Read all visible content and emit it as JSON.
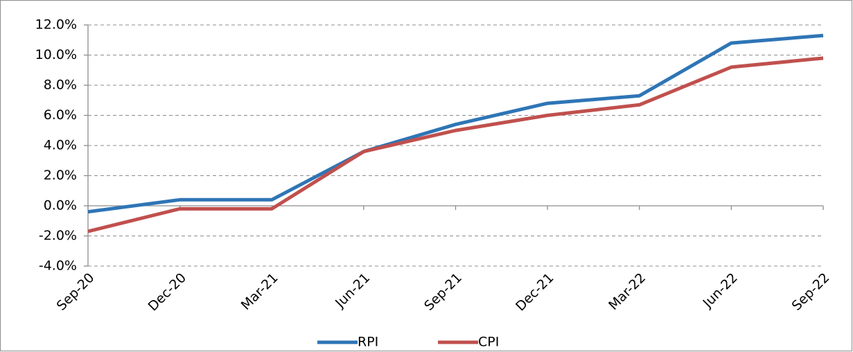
{
  "chart_data": {
    "type": "line",
    "categories": [
      "Sep-20",
      "Dec-20",
      "Mar-21",
      "Jun-21",
      "Sep-21",
      "Dec-21",
      "Mar-22",
      "Jun-22",
      "Sep-22"
    ],
    "series": [
      {
        "name": "RPI",
        "color": "#2e75b6",
        "values": [
          -0.4,
          0.4,
          0.4,
          3.6,
          5.4,
          6.8,
          7.3,
          10.8,
          11.3
        ]
      },
      {
        "name": "CPI",
        "color": "#c0504d",
        "values": [
          -1.7,
          -0.2,
          -0.2,
          3.6,
          5.0,
          6.0,
          6.7,
          9.2,
          9.8
        ]
      }
    ],
    "ylim": [
      -4,
      12
    ],
    "yticks": [
      {
        "value": -4,
        "label": "-4.0%"
      },
      {
        "value": -2,
        "label": "-2.0%"
      },
      {
        "value": 0,
        "label": "0.0%"
      },
      {
        "value": 2,
        "label": "2.0%"
      },
      {
        "value": 4,
        "label": "4.0%"
      },
      {
        "value": 6,
        "label": "6.0%"
      },
      {
        "value": 8,
        "label": "8.0%"
      },
      {
        "value": 10,
        "label": "10.0%"
      },
      {
        "value": 12,
        "label": "12.0%"
      }
    ],
    "grid": true,
    "legend": "bottom"
  }
}
